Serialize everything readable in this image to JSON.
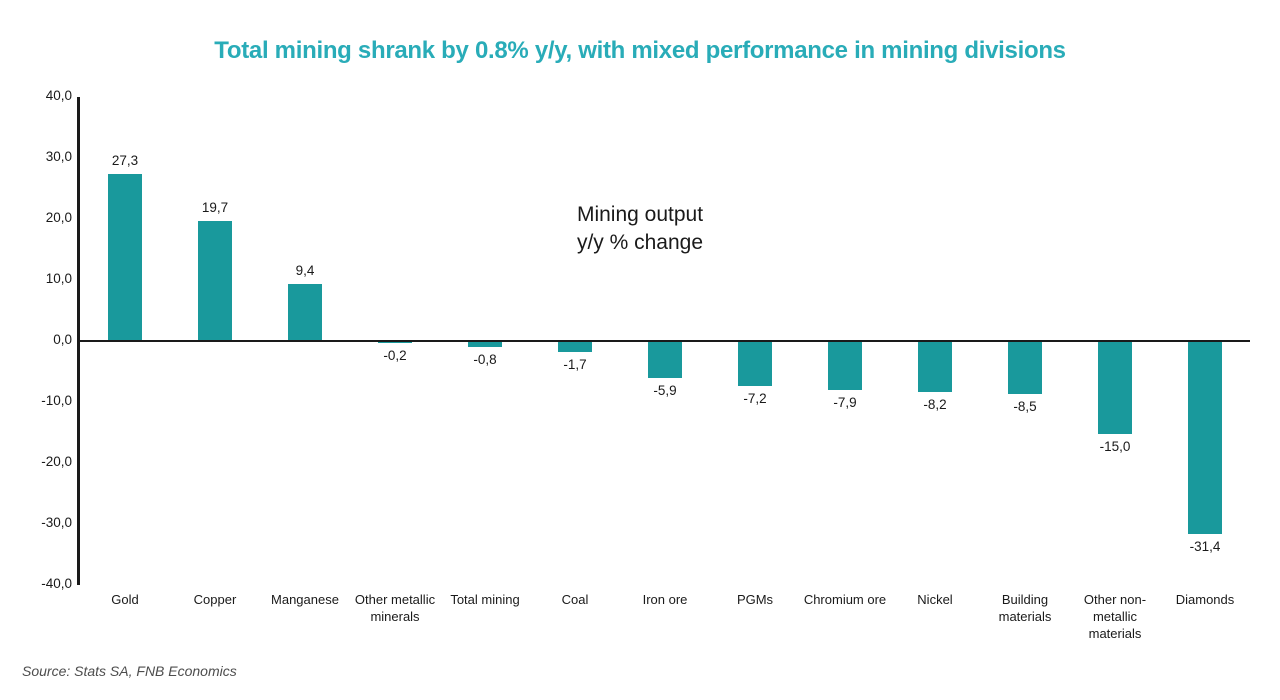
{
  "page": {
    "source": "Source: Stats SA, FNB Economics"
  },
  "annotation": {
    "line1": "Mining output",
    "line2": "y/y % change"
  },
  "colors": {
    "bar": "#19999C",
    "title": "#29ACB8",
    "axis": "#1A1A1A",
    "source_text": "#4D4D4D",
    "background": "#FFFFFF"
  },
  "chart_data": {
    "type": "bar",
    "title": "Total mining shrank by 0.8% y/y, with mixed performance in mining divisions",
    "annotation": "Mining output y/y % change",
    "categories": [
      "Gold",
      "Copper",
      "Manganese",
      "Other metallic minerals",
      "Total mining",
      "Coal",
      "Iron ore",
      "PGMs",
      "Chromium ore",
      "Nickel",
      "Building materials",
      "Other non-metallic materials",
      "Diamonds"
    ],
    "values": [
      27.3,
      19.7,
      9.4,
      -0.2,
      -0.8,
      -1.7,
      -5.9,
      -7.2,
      -7.9,
      -8.2,
      -8.5,
      -15.0,
      -31.4
    ],
    "value_labels": [
      "27,3",
      "19,7",
      "9,4",
      "-0,2",
      "-0,8",
      "-1,7",
      "-5,9",
      "-7,2",
      "-7,9",
      "-8,2",
      "-8,5",
      "-15,0",
      "-31,4"
    ],
    "xlabel": "",
    "ylabel": "",
    "ylim": [
      -40,
      40
    ],
    "ytick_step": 10,
    "ytick_labels": [
      "40,0",
      "30,0",
      "20,0",
      "10,0",
      "0,0",
      "-10,0",
      "-20,0",
      "-30,0",
      "-40,0"
    ],
    "grid": false,
    "legend_position": "none",
    "decimal_separator": ","
  }
}
